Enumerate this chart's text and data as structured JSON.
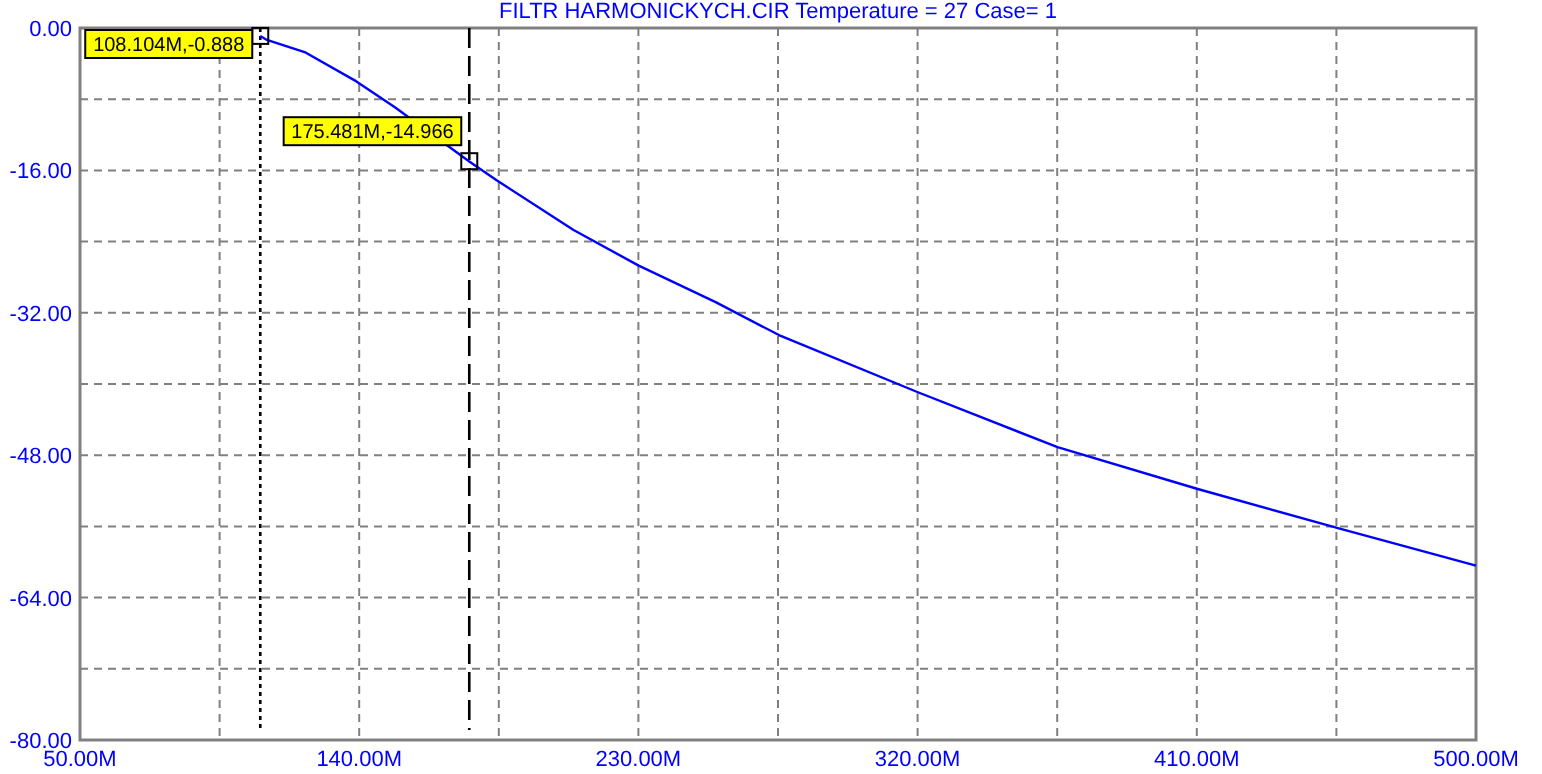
{
  "chart_data": {
    "type": "line",
    "title": "FILTR HARMONICKYCH.CIR Temperature = 27 Case= 1",
    "x": [
      108.104,
      110,
      122.4,
      139.1,
      151.5,
      162,
      175.481,
      184.3,
      209.1,
      230.1,
      254.9,
      275.3,
      319.9,
      365.1,
      410.3,
      455.5,
      500
    ],
    "series": [
      {
        "color": "#0000ff",
        "values": [
          -0.9,
          -1.3,
          -2.7,
          -6.0,
          -8.9,
          null,
          -15.0,
          -17.1,
          -22.7,
          -26.7,
          -30.8,
          -34.5,
          -40.9,
          -47.1,
          -51.8,
          -56.2,
          -60.4
        ]
      }
    ],
    "xlim": [
      50,
      500
    ],
    "ylim": [
      -80,
      0
    ],
    "xticks": [
      {
        "value": 50,
        "label": "50.00M"
      },
      {
        "value": 95,
        "label": null
      },
      {
        "value": 140,
        "label": "140.00M"
      },
      {
        "value": 185,
        "label": null
      },
      {
        "value": 230,
        "label": "230.00M"
      },
      {
        "value": 275,
        "label": null
      },
      {
        "value": 320,
        "label": "320.00M"
      },
      {
        "value": 365,
        "label": null
      },
      {
        "value": 410,
        "label": "410.00M"
      },
      {
        "value": 455,
        "label": null
      },
      {
        "value": 500,
        "label": "500.00M"
      }
    ],
    "yticks": [
      {
        "value": -80,
        "label": "-80.00"
      },
      {
        "value": -72,
        "label": null
      },
      {
        "value": -64,
        "label": "-64.00"
      },
      {
        "value": -56,
        "label": null
      },
      {
        "value": -48,
        "label": "-48.00"
      },
      {
        "value": -40,
        "label": null
      },
      {
        "value": -32,
        "label": "-32.00"
      },
      {
        "value": -24,
        "label": null
      },
      {
        "value": -16,
        "label": "-16.00"
      },
      {
        "value": -8,
        "label": null
      },
      {
        "value": 0,
        "label": "0.00"
      }
    ],
    "grid": true,
    "marker": "none",
    "line_style": "solid",
    "ref_lines": [
      {
        "axis": "x",
        "value": 108.104,
        "line_style": "dotted",
        "color": "#000000"
      },
      {
        "axis": "x",
        "value": 175.481,
        "line_style": "dashed",
        "color": "#000000"
      }
    ],
    "annotations": [
      {
        "text": "108.104M,-0.888",
        "x": 108.104,
        "y": -0.888
      },
      {
        "text": "175.481M,-14.966",
        "x": 175.481,
        "y": -14.966
      }
    ]
  }
}
